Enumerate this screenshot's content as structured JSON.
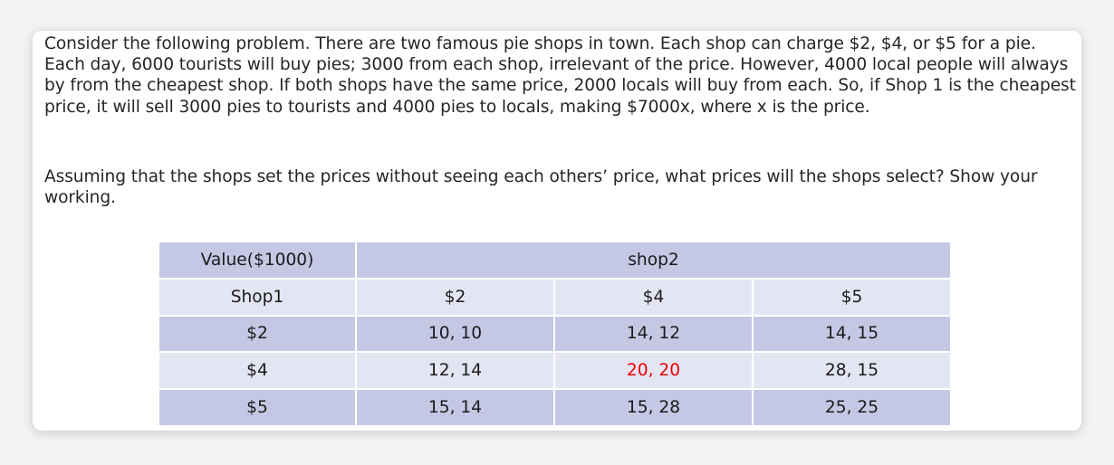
{
  "problem": {
    "paragraph1": "Consider the following problem. There are two famous pie shops in town. Each shop can charge $2, $4, or $5 for a pie. Each day, 6000 tourists will buy pies; 3000 from each shop, irrelevant of the price. However, 4000 local people will always by from the cheapest shop. If both shops have the same price, 2000 locals will buy from each. So, if Shop 1 is the cheapest price, it will sell 3000 pies to tourists and 4000 pies to locals, making $7000x, where x is the price.",
    "paragraph2": "Assuming that the shops set the prices without seeing each others’ price, what prices will the shops select? Show your working."
  },
  "table": {
    "corner_label": "Value($1000)",
    "column_group_label": "shop2",
    "row_group_label": "Shop1",
    "column_headers": [
      "$2",
      "$4",
      "$5"
    ],
    "rows": [
      {
        "label": "$2",
        "cells": [
          "10, 10",
          "14, 12",
          "14, 15"
        ]
      },
      {
        "label": "$4",
        "cells": [
          "12, 14",
          "20, 20",
          "28, 15"
        ]
      },
      {
        "label": "$5",
        "cells": [
          "15, 14",
          "15, 28",
          "25, 25"
        ]
      }
    ],
    "highlighted_cell": {
      "row": 1,
      "col": 1,
      "color": "#ee0000"
    },
    "colors": {
      "dark_row": "#c5c8e5",
      "light_row": "#e4e5f3"
    }
  }
}
